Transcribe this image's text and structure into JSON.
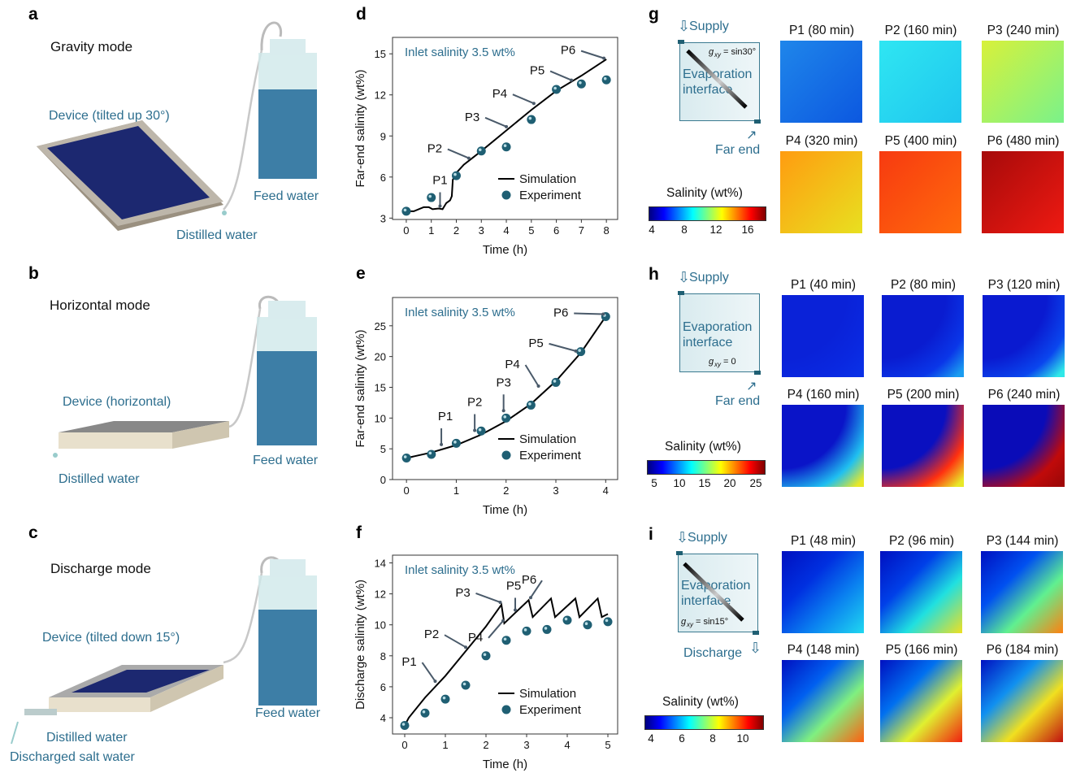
{
  "panels": {
    "a": {
      "letter": "a",
      "mode": "Gravity mode",
      "device": "Device (tilted up 30°)",
      "feed": "Feed water",
      "distilled": "Distilled water"
    },
    "b": {
      "letter": "b",
      "mode": "Horizontal mode",
      "device": "Device (horizontal)",
      "feed": "Feed water",
      "distilled": "Distilled water"
    },
    "c": {
      "letter": "c",
      "mode": "Discharge mode",
      "device": "Device (tilted down 15°)",
      "feed": "Feed water",
      "distilled": "Distilled water",
      "discharged": "Discharged salt water"
    },
    "g": {
      "letter": "g",
      "supply": "Supply",
      "interface": [
        "Evaporation",
        "interface"
      ],
      "gxy": "= sin30°",
      "end": "Far end",
      "cbar_title": "Salinity (wt%)",
      "cbar_ticks": [
        "4",
        "8",
        "12",
        "16"
      ],
      "tiles": [
        {
          "label": "P1 (80 min)",
          "colors": [
            "#1f86ea",
            "#0c58e0"
          ]
        },
        {
          "label": "P2 (160 min)",
          "colors": [
            "#2fe6f2",
            "#1fc6ee"
          ]
        },
        {
          "label": "P3 (240 min)",
          "colors": [
            "#d8f13a",
            "#7af28a"
          ]
        },
        {
          "label": "P4 (320 min)",
          "colors": [
            "#ff9c10",
            "#e8e020"
          ]
        },
        {
          "label": "P5 (400 min)",
          "colors": [
            "#f73a10",
            "#ff6a0c"
          ]
        },
        {
          "label": "P6 (480 min)",
          "colors": [
            "#a60a0a",
            "#ee1a12"
          ]
        }
      ]
    },
    "h": {
      "letter": "h",
      "supply": "Supply",
      "interface": [
        "Evaporation",
        "interface"
      ],
      "gxy": "= 0",
      "end": "Far end",
      "cbar_title": "Salinity (wt%)",
      "cbar_ticks": [
        "5",
        "10",
        "15",
        "20",
        "25"
      ],
      "tiles": [
        {
          "label": "P1 (40 min)",
          "colors": [
            "#0a22d8",
            "#0a28e0",
            "#0a30e6"
          ]
        },
        {
          "label": "P2 (80 min)",
          "colors": [
            "#0a1cd0",
            "#0a36e8",
            "#1a9cf0"
          ]
        },
        {
          "label": "P3 (120 min)",
          "colors": [
            "#0a1ad0",
            "#0a46ee",
            "#30e8e8"
          ]
        },
        {
          "label": "P4 (160 min)",
          "colors": [
            "#0a14c8",
            "#20c0f0",
            "#e8e828"
          ]
        },
        {
          "label": "P5 (200 min)",
          "colors": [
            "#0a10c0",
            "#ff3010",
            "#e8e828"
          ]
        },
        {
          "label": "P6 (240 min)",
          "colors": [
            "#0a0cb8",
            "#c00a0a",
            "#a00808"
          ]
        }
      ]
    },
    "i": {
      "letter": "i",
      "supply": "Supply",
      "interface": [
        "Evaporation",
        "interface"
      ],
      "gxy": "= sin15°",
      "end": "Discharge",
      "cbar_title": "Salinity (wt%)",
      "cbar_ticks": [
        "4",
        "6",
        "8",
        "10"
      ],
      "tiles": [
        {
          "label": "P1 (48 min)",
          "colors": [
            "#0010c0",
            "#0030e0",
            "#0a80f0",
            "#20d8f0"
          ]
        },
        {
          "label": "P2 (96 min)",
          "colors": [
            "#0010c0",
            "#0040e8",
            "#20e0e0",
            "#f0e020"
          ]
        },
        {
          "label": "P3 (144 min)",
          "colors": [
            "#0010c0",
            "#0050f0",
            "#60f090",
            "#ff8010"
          ]
        },
        {
          "label": "P4 (148 min)",
          "colors": [
            "#0010c0",
            "#0060f0",
            "#80f080",
            "#ff6010"
          ]
        },
        {
          "label": "P5 (166 min)",
          "colors": [
            "#0010c0",
            "#0070f0",
            "#e0f030",
            "#f02010"
          ]
        },
        {
          "label": "P6 (184 min)",
          "colors": [
            "#0010c0",
            "#1090f0",
            "#f0e020",
            "#c01010"
          ]
        }
      ]
    }
  },
  "accent": "#2d6e8e",
  "marker_color": "#1f5f73",
  "chart_data": [
    {
      "panel": "d",
      "type": "line",
      "xlabel": "Time (h)",
      "ylabel": "Far-end salinity (wt%)",
      "note": "Inlet salinity 3.5 wt%",
      "xlim": [
        -0.55,
        8.45
      ],
      "ylim": [
        2.9,
        16.2
      ],
      "xticks": [
        0,
        1,
        2,
        3,
        4,
        5,
        6,
        7,
        8
      ],
      "yticks": [
        3,
        6,
        9,
        12,
        15
      ],
      "legend": {
        "position": "bottom-right",
        "entries": [
          "Simulation",
          "Experiment"
        ]
      },
      "series": [
        {
          "name": "Simulation",
          "kind": "line",
          "x": [
            0,
            0.3,
            0.7,
            0.9,
            1.05,
            1.3,
            1.45,
            1.6,
            1.75,
            1.82,
            1.86,
            2,
            2.3,
            3,
            4,
            5,
            6,
            7,
            8
          ],
          "y": [
            3.5,
            3.5,
            3.8,
            3.8,
            3.65,
            3.7,
            3.65,
            4.1,
            4.3,
            4.6,
            5.8,
            6.3,
            6.9,
            7.9,
            9.4,
            10.9,
            12.3,
            13.4,
            14.6
          ]
        },
        {
          "name": "Experiment",
          "kind": "scatter",
          "x": [
            0,
            1,
            2,
            3,
            4,
            5,
            6,
            7,
            8
          ],
          "y": [
            3.5,
            4.5,
            6.1,
            7.9,
            8.2,
            10.2,
            12.4,
            12.8,
            13.1
          ]
        }
      ],
      "annotations": [
        {
          "text": "P1",
          "x": 1.35,
          "y": 3.7
        },
        {
          "text": "P2",
          "x": 2.5,
          "y": 7.2
        },
        {
          "text": "P3",
          "x": 4.0,
          "y": 9.5
        },
        {
          "text": "P4",
          "x": 5.1,
          "y": 11.2
        },
        {
          "text": "P5",
          "x": 6.6,
          "y": 12.9
        },
        {
          "text": "P6",
          "x": 7.9,
          "y": 14.5
        }
      ]
    },
    {
      "panel": "e",
      "type": "line",
      "xlabel": "Time (h)",
      "ylabel": "Far-end salinity (wt%)",
      "note": "Inlet salinity 3.5 wt%",
      "xlim": [
        -0.28,
        4.24
      ],
      "ylim": [
        0,
        29.6
      ],
      "xticks": [
        0,
        1,
        2,
        3,
        4
      ],
      "yticks": [
        0,
        5,
        10,
        15,
        20,
        25
      ],
      "legend": {
        "position": "bottom-right",
        "entries": [
          "Simulation",
          "Experiment"
        ]
      },
      "series": [
        {
          "name": "Simulation",
          "kind": "line",
          "x": [
            0,
            0.5,
            1,
            1.5,
            2,
            2.5,
            3,
            3.5,
            4
          ],
          "y": [
            3.5,
            4.4,
            5.6,
            7.3,
            9.5,
            12.3,
            16.0,
            20.6,
            26.5
          ]
        },
        {
          "name": "Experiment",
          "kind": "scatter",
          "x": [
            0,
            0.5,
            1,
            1.5,
            2,
            2.5,
            3,
            3.5,
            4
          ],
          "y": [
            3.5,
            4.1,
            5.9,
            7.9,
            10,
            12.1,
            15.8,
            20.8,
            26.5
          ]
        }
      ],
      "annotations": [
        {
          "text": "P1",
          "x": 0.7,
          "y": 5.3
        },
        {
          "text": "P2",
          "x": 1.37,
          "y": 7.6
        },
        {
          "text": "P3",
          "x": 1.95,
          "y": 10.8
        },
        {
          "text": "P4",
          "x": 2.65,
          "y": 14.8
        },
        {
          "text": "P5",
          "x": 3.4,
          "y": 20.5
        },
        {
          "text": "P6",
          "x": 3.95,
          "y": 26.5
        }
      ]
    },
    {
      "panel": "f",
      "type": "line",
      "xlabel": "Time (h)",
      "ylabel": "Discharge salinity (wt%)",
      "note": "Inlet salinity 3.5 wt%",
      "xlim": [
        -0.3,
        5.24
      ],
      "ylim": [
        2.95,
        14.5
      ],
      "xticks": [
        0,
        1,
        2,
        3,
        4,
        5
      ],
      "yticks": [
        4,
        6,
        8,
        10,
        12,
        14
      ],
      "legend": {
        "position": "bottom-right",
        "entries": [
          "Simulation",
          "Experiment"
        ]
      },
      "series": [
        {
          "name": "Simulation",
          "kind": "line",
          "x": [
            0,
            0.1,
            0.5,
            1,
            1.5,
            2,
            2.38,
            2.45,
            3.05,
            3.15,
            3.6,
            3.7,
            4.2,
            4.3,
            4.75,
            4.85,
            5
          ],
          "y": [
            3.5,
            4,
            5.3,
            6.7,
            8.3,
            9.9,
            11.3,
            10.1,
            11.6,
            10.5,
            11.7,
            10.5,
            11.7,
            10.5,
            11.7,
            10.5,
            10.7
          ]
        },
        {
          "name": "Experiment",
          "kind": "scatter",
          "x": [
            0,
            0.5,
            1,
            1.5,
            2,
            2.5,
            3,
            3.5,
            4,
            4.5,
            5
          ],
          "y": [
            3.5,
            4.3,
            5.2,
            6.1,
            8,
            9,
            9.6,
            9.7,
            10.3,
            10,
            10.2
          ]
        }
      ],
      "annotations": [
        {
          "text": "P1",
          "x": 0.75,
          "y": 6.2
        },
        {
          "text": "P2",
          "x": 1.5,
          "y": 8.4
        },
        {
          "text": "P3",
          "x": 2.35,
          "y": 11.3
        },
        {
          "text": "P4",
          "x": 2.42,
          "y": 10.1
        },
        {
          "text": "P5",
          "x": 2.72,
          "y": 10.8
        },
        {
          "text": "P6",
          "x": 3.1,
          "y": 11.6
        }
      ]
    }
  ]
}
